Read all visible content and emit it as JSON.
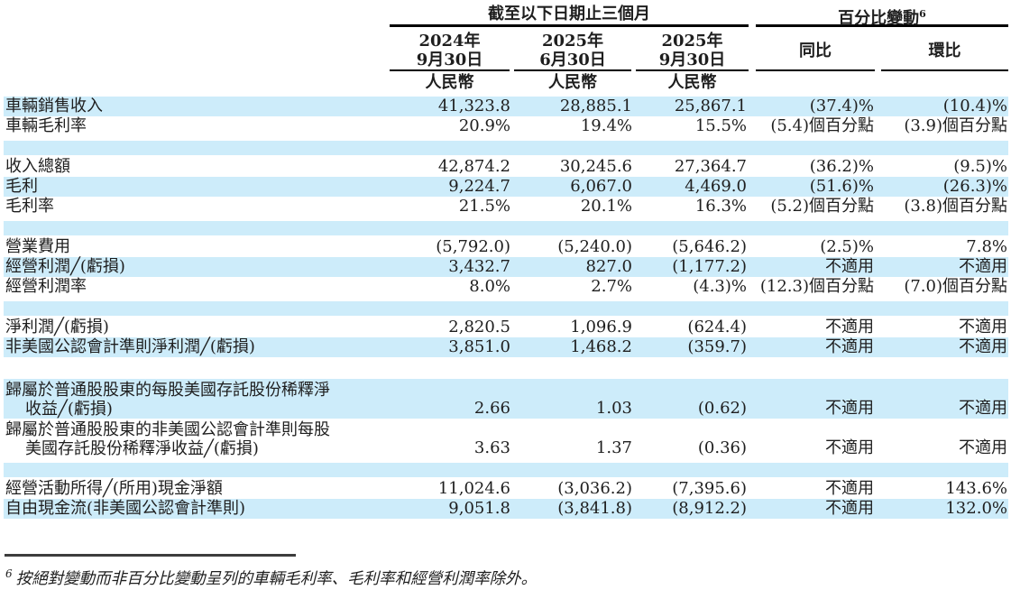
{
  "colors": {
    "row_highlight": "#cdecfa",
    "text": "#1e1e1e",
    "header_rule": "#000000",
    "footnote_rule": "#3d3d3d"
  },
  "table": {
    "group_headers": [
      {
        "label": "截至以下日期止三個月"
      },
      {
        "label": "百分比變動",
        "footnote_ref": "6"
      }
    ],
    "columns": [
      {
        "line1": "2024年",
        "line2": "9月30日",
        "currency": "人民幣"
      },
      {
        "line1": "2025年",
        "line2": "6月30日",
        "currency": "人民幣"
      },
      {
        "line1": "2025年",
        "line2": "9月30日",
        "currency": "人民幣"
      },
      {
        "label": "同比"
      },
      {
        "label": "環比"
      }
    ],
    "rows": [
      {
        "type": "data",
        "bg": "blue",
        "label": "車輛銷售收入",
        "values": [
          "41,323.8",
          "28,885.1",
          "25,867.1",
          "(37.4)%",
          "(10.4)%"
        ]
      },
      {
        "type": "data",
        "bg": "white",
        "label": "車輛毛利率",
        "values": [
          "20.9%",
          "19.4%",
          "15.5%",
          "(5.4)個百分點",
          "(3.9)個百分點"
        ]
      },
      {
        "type": "spacer",
        "bg": "blue"
      },
      {
        "type": "data",
        "bg": "white",
        "label": "收入總額",
        "values": [
          "42,874.2",
          "30,245.6",
          "27,364.7",
          "(36.2)%",
          "(9.5)%"
        ]
      },
      {
        "type": "data",
        "bg": "blue",
        "label": "毛利",
        "values": [
          "9,224.7",
          "6,067.0",
          "4,469.0",
          "(51.6)%",
          "(26.3)%"
        ]
      },
      {
        "type": "data",
        "bg": "white",
        "label": "毛利率",
        "values": [
          "21.5%",
          "20.1%",
          "16.3%",
          "(5.2)個百分點",
          "(3.8)個百分點"
        ]
      },
      {
        "type": "spacer",
        "bg": "blue"
      },
      {
        "type": "data",
        "bg": "white",
        "label": "營業費用",
        "values": [
          "(5,792.0)",
          "(5,240.0)",
          "(5,646.2)",
          "(2.5)%",
          "7.8%"
        ]
      },
      {
        "type": "data",
        "bg": "blue",
        "label": "經營利潤╱(虧損)",
        "values": [
          "3,432.7",
          "827.0",
          "(1,177.2)",
          "不適用",
          "不適用"
        ]
      },
      {
        "type": "data",
        "bg": "white",
        "label": "經營利潤率",
        "values": [
          "8.0%",
          "2.7%",
          "(4.3)%",
          "(12.3)個百分點",
          "(7.0)個百分點"
        ]
      },
      {
        "type": "spacer",
        "bg": "blue"
      },
      {
        "type": "data",
        "bg": "white",
        "label": "淨利潤╱(虧損)",
        "values": [
          "2,820.5",
          "1,096.9",
          "(624.4)",
          "不適用",
          "不適用"
        ]
      },
      {
        "type": "data",
        "bg": "blue",
        "label": "非美國公認會計準則淨利潤╱(虧損)",
        "values": [
          "3,851.0",
          "1,468.2",
          "(359.7)",
          "不適用",
          "不適用"
        ]
      },
      {
        "type": "spacer",
        "bg": "white"
      },
      {
        "type": "data",
        "bg": "blue",
        "label": [
          "歸屬於普通股股東的每股美國存託股份稀釋淨",
          "收益╱(虧損)"
        ],
        "values": [
          "2.66",
          "1.03",
          "(0.62)",
          "不適用",
          "不適用"
        ]
      },
      {
        "type": "data",
        "bg": "white",
        "label": [
          "歸屬於普通股股東的非美國公認會計準則每股",
          "美國存託股份稀釋淨收益╱(虧損)"
        ],
        "values": [
          "3.63",
          "1.37",
          "(0.36)",
          "不適用",
          "不適用"
        ]
      },
      {
        "type": "spacer",
        "bg": "blue"
      },
      {
        "type": "data",
        "bg": "white",
        "label": "經營活動所得╱(所用)現金淨額",
        "values": [
          "11,024.6",
          "(3,036.2)",
          "(7,395.6)",
          "不適用",
          "143.6%"
        ]
      },
      {
        "type": "data",
        "bg": "blue",
        "label": "自由現金流(非美國公認會計準則)",
        "values": [
          "9,051.8",
          "(3,841.8)",
          "(8,912.2)",
          "不適用",
          "132.0%"
        ]
      }
    ]
  },
  "footnote": {
    "ref": "6",
    "text": "按絕對變動而非百分比變動呈列的車輛毛利率、毛利率和經營利潤率除外。"
  }
}
